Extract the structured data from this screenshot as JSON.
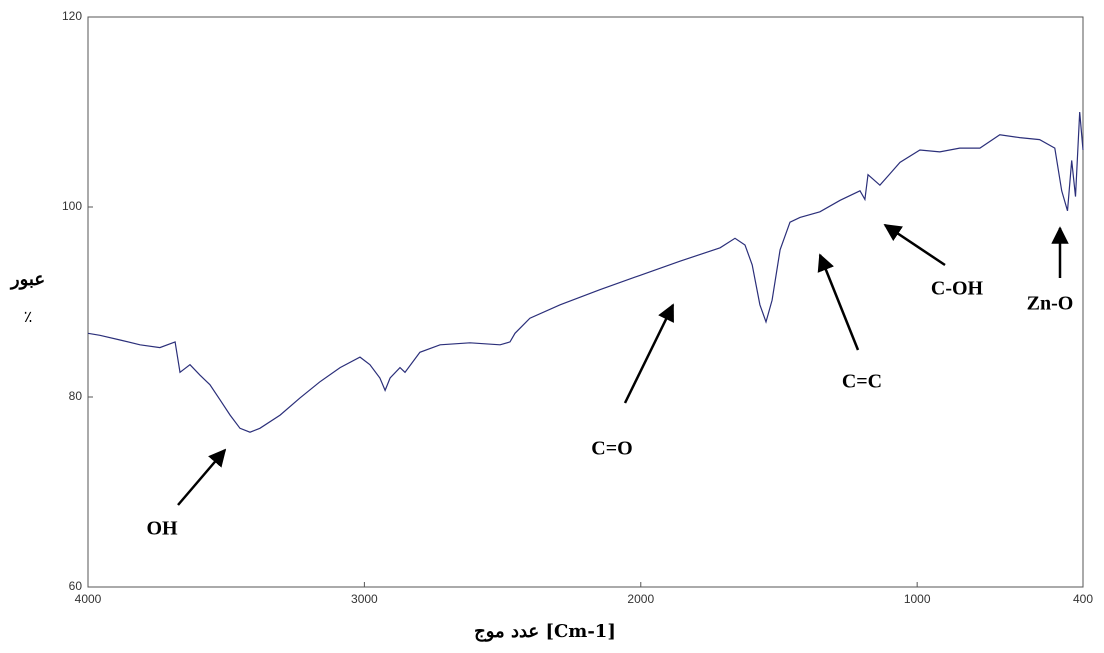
{
  "chart_data": {
    "type": "line",
    "x_label": "عدد موج [Cm-1]",
    "y_label": [
      "عبور",
      "٪"
    ],
    "annotations": [
      "OH",
      "C=O",
      "C=C",
      "C-OH",
      "Zn-O"
    ],
    "xlim": [
      4000,
      400
    ],
    "ylim": [
      60,
      120
    ],
    "xticks": [
      4000,
      3000,
      2000,
      1000,
      400
    ],
    "yticks": [
      60,
      80,
      100,
      120
    ],
    "series": [
      {
        "color": "#2b2f7a",
        "x": [
          4000,
          3957,
          3884,
          3812,
          3740,
          3685,
          3667,
          3631,
          3595,
          3559,
          3522,
          3486,
          3450,
          3414,
          3378,
          3305,
          3233,
          3161,
          3088,
          3016,
          2980,
          2944,
          2925,
          2907,
          2871,
          2853,
          2799,
          2726,
          2618,
          2509,
          2473,
          2455,
          2401,
          2292,
          2148,
          2003,
          1858,
          1713,
          1659,
          1623,
          1597,
          1569,
          1547,
          1525,
          1496,
          1460,
          1424,
          1352,
          1279,
          1207,
          1189,
          1178,
          1135,
          1062,
          990,
          918,
          846,
          773,
          701,
          629,
          557,
          502,
          477,
          456,
          441,
          427,
          412,
          400
        ],
        "values": [
          86.7,
          86.5,
          86.0,
          85.5,
          85.2,
          85.8,
          82.6,
          83.4,
          82.3,
          81.3,
          79.7,
          78.1,
          76.7,
          76.3,
          76.7,
          78.1,
          79.9,
          81.6,
          83.1,
          84.2,
          83.4,
          82.0,
          80.7,
          82.0,
          83.1,
          82.6,
          84.7,
          85.5,
          85.7,
          85.5,
          85.8,
          86.7,
          88.3,
          89.7,
          91.3,
          92.8,
          94.3,
          95.7,
          96.7,
          96.0,
          93.9,
          89.7,
          87.9,
          90.2,
          95.5,
          98.4,
          98.9,
          99.5,
          100.7,
          101.7,
          100.8,
          103.4,
          102.3,
          104.7,
          106.0,
          105.8,
          106.2,
          106.2,
          107.6,
          107.3,
          107.1,
          106.2,
          101.7,
          99.6,
          104.9,
          101.1,
          110.0,
          106.0
        ]
      }
    ]
  }
}
